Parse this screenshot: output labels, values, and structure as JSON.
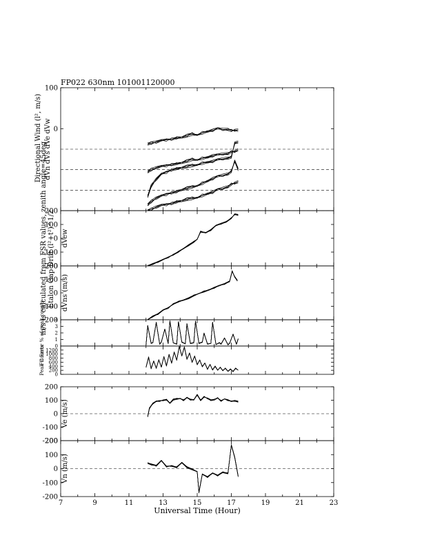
{
  "header": {
    "title": "FP022 630nm  101001120000"
  },
  "left_labels": {
    "outer": "m/s is calculated from FSR values, zenith angle=45deg",
    "drift": "Etalon Gap Drift (l²+t²)^1/2",
    "dir_wind": "Directional Wind (l², m/s)"
  },
  "chart_data": [
    {
      "id": "directional",
      "type": "line",
      "ylabel": "dVn  dVs  dVe dVw",
      "ylim": [
        -200,
        100
      ],
      "yticks": [
        100,
        0
      ],
      "xlim": [
        7,
        23
      ],
      "dashed_levels": [
        -50,
        -100,
        -150,
        -200
      ],
      "series": [
        {
          "x": [
            12.1,
            12.3,
            12.6,
            12.9,
            13.2,
            13.5,
            13.8,
            14.1,
            14.4,
            14.7,
            15.0,
            15.3,
            15.6,
            15.9,
            16.2,
            16.5,
            16.8,
            17.0,
            17.2,
            17.4
          ],
          "y": [
            -185,
            -178,
            -170,
            -165,
            -160,
            -156,
            -153,
            -148,
            -145,
            -142,
            -138,
            -133,
            -128,
            -122,
            -118,
            -114,
            -110,
            -105,
            -78,
            -100
          ]
        },
        {
          "x": [
            12.1,
            12.3,
            12.6,
            12.9,
            13.2,
            13.5,
            13.8,
            14.1,
            14.4,
            14.7,
            15.0,
            15.3,
            15.6,
            15.9,
            16.2,
            16.5,
            16.8,
            17.0,
            17.2,
            17.4
          ],
          "y": [
            -200,
            -197,
            -192,
            -188,
            -185,
            -182,
            -178,
            -175,
            -172,
            -170,
            -167,
            -163,
            -159,
            -155,
            -150,
            -146,
            -141,
            -136,
            -132,
            -130
          ]
        },
        {
          "x": [
            12.1,
            12.3,
            12.6,
            12.9,
            13.2,
            13.5,
            13.8,
            14.1,
            14.4,
            14.7,
            15.0,
            15.3,
            15.6,
            15.9,
            16.2,
            16.5,
            16.8,
            17.0,
            17.2,
            17.4
          ],
          "y": [
            -165,
            -140,
            -124,
            -112,
            -106,
            -100,
            -97,
            -94,
            -92,
            -90,
            -87,
            -84,
            -82,
            -80,
            -77,
            -74,
            -71,
            -70,
            -34,
            -33
          ]
        },
        {
          "x": [
            12.1,
            12.3,
            12.6,
            12.9,
            13.2,
            13.5,
            13.8,
            14.1,
            14.4,
            14.7,
            15.0,
            15.3,
            15.6,
            15.9,
            16.2,
            16.5,
            16.8,
            17.0,
            17.2,
            17.4
          ],
          "y": [
            -105,
            -100,
            -96,
            -93,
            -90,
            -87,
            -85,
            -82,
            -79,
            -75,
            -75,
            -72,
            -70,
            -66,
            -65,
            -62,
            -60,
            -57,
            -55,
            -52
          ]
        },
        {
          "x": [
            12.1,
            12.3,
            12.6,
            12.9,
            13.2,
            13.5,
            13.8,
            14.1,
            14.4,
            14.7,
            15.0,
            15.3,
            15.6,
            15.9,
            16.2,
            16.5,
            16.8,
            17.0,
            17.2,
            17.4
          ],
          "y": [
            -37,
            -35,
            -33,
            -30,
            -27,
            -25,
            -22,
            -20,
            -17,
            -13,
            -14,
            -10,
            -7,
            -4,
            -1,
            -2,
            -1,
            -5,
            -3,
            -4
          ]
        }
      ]
    },
    {
      "id": "dvew",
      "type": "line",
      "ylabel": "dVew",
      "ylim": [
        -200,
        200
      ],
      "yticks": [
        200,
        100,
        0,
        -100,
        -200
      ],
      "xlim": [
        7,
        23
      ],
      "series": [
        {
          "x": [
            12.1,
            12.4,
            12.7,
            13.0,
            13.3,
            13.6,
            13.9,
            14.2,
            14.5,
            14.8,
            15.0,
            15.2,
            15.5,
            15.8,
            16.1,
            16.4,
            16.7,
            17.0,
            17.2,
            17.4
          ],
          "y": [
            -200,
            -186,
            -172,
            -156,
            -138,
            -118,
            -97,
            -72,
            -50,
            -26,
            -5,
            48,
            40,
            60,
            90,
            105,
            120,
            145,
            175,
            168
          ]
        }
      ]
    },
    {
      "id": "dvns",
      "type": "line",
      "ylabel": "dVns (m/s)",
      "ylim": [
        -200,
        200
      ],
      "yticks": [
        200,
        100,
        0,
        -100,
        -200
      ],
      "xlim": [
        7,
        23
      ],
      "series": [
        {
          "x": [
            12.1,
            12.4,
            12.7,
            13.0,
            13.3,
            13.6,
            13.9,
            14.2,
            14.5,
            14.8,
            15.1,
            15.4,
            15.7,
            16.0,
            16.3,
            16.6,
            16.9,
            17.05,
            17.2,
            17.35
          ],
          "y": [
            -200,
            -175,
            -158,
            -130,
            -112,
            -82,
            -65,
            -52,
            -40,
            -20,
            -3,
            10,
            22,
            38,
            52,
            66,
            86,
            160,
            120,
            90
          ]
        }
      ]
    },
    {
      "id": "fit_error",
      "type": "line",
      "ylabel": "Fit Error % of peak counts",
      "ylim": [
        0,
        4
      ],
      "yticks": [
        4,
        3,
        2,
        1,
        0
      ],
      "xlim": [
        7,
        23
      ],
      "series": [
        {
          "x": [
            12.0,
            12.1,
            12.3,
            12.4,
            12.6,
            12.8,
            12.9,
            13.1,
            13.3,
            13.4,
            13.6,
            13.8,
            13.9,
            14.1,
            14.3,
            14.4,
            14.6,
            14.8,
            14.9,
            15.1,
            15.3,
            15.4,
            15.6,
            15.8,
            15.9,
            16.1,
            16.3,
            16.4,
            16.6,
            16.8,
            16.9,
            17.1,
            17.3,
            17.4
          ],
          "y": [
            0.2,
            3.1,
            0.4,
            0.5,
            3.6,
            0.3,
            0.6,
            2.6,
            0.4,
            3.8,
            0.5,
            0.3,
            3.7,
            0.6,
            0.3,
            3.4,
            0.4,
            0.5,
            3.8,
            0.4,
            0.6,
            2.0,
            0.3,
            0.4,
            3.6,
            0.2,
            0.5,
            0.3,
            1.2,
            0.2,
            0.4,
            1.8,
            0.3,
            1.1
          ]
        }
      ]
    },
    {
      "id": "peak_counts",
      "type": "line",
      "ylabel": "Peak Counts",
      "ylim": [
        0,
        1400
      ],
      "yticks": [
        1200,
        1000,
        800,
        600,
        400,
        200,
        0
      ],
      "xlim": [
        7,
        23
      ],
      "series": [
        {
          "x": [
            12.0,
            12.15,
            12.3,
            12.45,
            12.6,
            12.75,
            12.9,
            13.05,
            13.2,
            13.35,
            13.5,
            13.65,
            13.8,
            13.95,
            14.1,
            14.25,
            14.4,
            14.55,
            14.7,
            14.85,
            15.0,
            15.15,
            15.3,
            15.45,
            15.6,
            15.75,
            15.9,
            16.05,
            16.2,
            16.35,
            16.5,
            16.65,
            16.8,
            16.95,
            17.1,
            17.25,
            17.4
          ],
          "y": [
            350,
            850,
            280,
            650,
            300,
            720,
            360,
            880,
            420,
            980,
            560,
            1100,
            700,
            1380,
            900,
            1350,
            750,
            1050,
            600,
            900,
            480,
            720,
            380,
            560,
            250,
            480,
            220,
            400,
            200,
            350,
            180,
            300,
            160,
            260,
            140,
            300,
            200
          ]
        }
      ]
    },
    {
      "id": "ve",
      "type": "line",
      "ylabel": "Ve (m/s)",
      "ylim": [
        -200,
        200
      ],
      "yticks": [
        200,
        100,
        0,
        -100,
        -200
      ],
      "xlim": [
        7,
        23
      ],
      "dashed_levels": [
        0
      ],
      "series": [
        {
          "x": [
            12.1,
            12.2,
            12.4,
            12.6,
            12.8,
            13.0,
            13.2,
            13.4,
            13.6,
            13.8,
            14.0,
            14.2,
            14.4,
            14.6,
            14.8,
            15.0,
            15.2,
            15.4,
            15.6,
            15.8,
            16.0,
            16.2,
            16.4,
            16.6,
            16.8,
            17.0,
            17.2,
            17.4
          ],
          "y": [
            -20,
            40,
            75,
            90,
            95,
            100,
            105,
            80,
            105,
            110,
            115,
            100,
            120,
            105,
            100,
            140,
            100,
            125,
            115,
            100,
            105,
            120,
            95,
            110,
            100,
            90,
            95,
            90
          ]
        }
      ]
    },
    {
      "id": "vn",
      "type": "line",
      "ylabel": "Vn (m/s)",
      "ylim": [
        -200,
        200
      ],
      "yticks": [
        200,
        100,
        0,
        -100,
        -200
      ],
      "xlim": [
        7,
        23
      ],
      "xticks": [
        7,
        9,
        11,
        13,
        15,
        17,
        19,
        21,
        23
      ],
      "xlabel": "Universal Time (Hour)",
      "dashed_levels": [
        0
      ],
      "series": [
        {
          "x": [
            12.1,
            12.3,
            12.6,
            12.9,
            13.2,
            13.5,
            13.8,
            14.1,
            14.4,
            14.7,
            15.0,
            15.1,
            15.3,
            15.6,
            15.9,
            16.2,
            16.5,
            16.8,
            17.0,
            17.2,
            17.4
          ],
          "y": [
            40,
            30,
            20,
            55,
            15,
            20,
            10,
            45,
            10,
            -5,
            -20,
            -170,
            -40,
            -60,
            -35,
            -50,
            -25,
            -35,
            170,
            80,
            -55
          ]
        }
      ]
    }
  ]
}
